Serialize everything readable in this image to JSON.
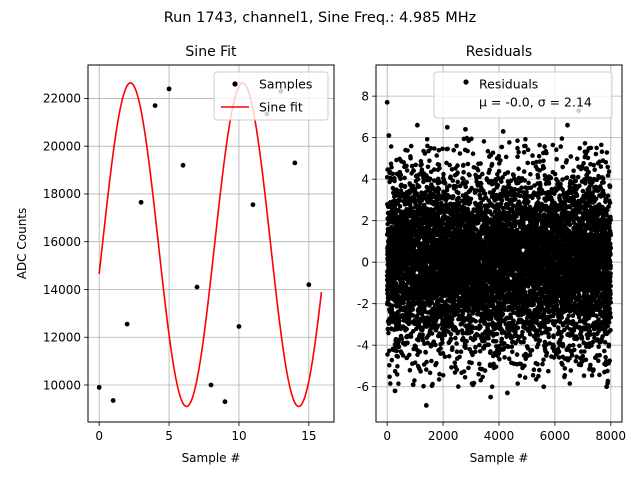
{
  "suptitle": "Run 1743, channel1, Sine Freq.: 4.985 MHz",
  "colors": {
    "samples": "#000000",
    "fit": "#ff0000",
    "grid": "#b0b0b0"
  },
  "chart_data": [
    {
      "type": "line",
      "title": "Sine Fit",
      "xlabel": "Sample #",
      "ylabel": "ADC Counts",
      "xlim": [
        -0.8,
        16.8
      ],
      "ylim": [
        8450,
        23400
      ],
      "xticks": [
        0,
        5,
        10,
        15
      ],
      "yticks": [
        10000,
        12000,
        14000,
        16000,
        18000,
        20000,
        22000
      ],
      "grid": true,
      "legend_placement": "top-right",
      "series": [
        {
          "name": "Samples",
          "style": "points",
          "x": [
            0,
            1,
            2,
            3,
            4,
            5,
            6,
            7,
            8,
            9,
            10,
            11,
            12,
            13,
            14,
            15
          ],
          "y": [
            9900,
            9350,
            12550,
            17650,
            21700,
            22400,
            19200,
            14100,
            10000,
            9300,
            12450,
            17550,
            21350,
            22300,
            19300,
            14200
          ]
        },
        {
          "name": "Sine fit",
          "style": "line",
          "function": {
            "form": "offset + amplitude*sin(2*pi*x/period + phase)",
            "offset": 15875,
            "amplitude": 6775,
            "period": 8.024,
            "phase": -0.1815,
            "x_range": [
              0,
              15.9
            ]
          }
        }
      ]
    },
    {
      "type": "scatter",
      "title": "Residuals",
      "xlabel": "Sample #",
      "ylabel": "",
      "xlim": [
        -400,
        8400
      ],
      "ylim": [
        -7.7,
        9.5
      ],
      "xticks": [
        0,
        2000,
        4000,
        6000,
        8000
      ],
      "yticks": [
        -6,
        -4,
        -2,
        0,
        2,
        4,
        6,
        8
      ],
      "grid": true,
      "legend_placement": "top-right",
      "series": [
        {
          "name": "Residuals",
          "stats_text": "μ = -0.0, σ = 2.14",
          "n_points": 8000,
          "x_range": [
            0,
            7999
          ],
          "mean": 0.0,
          "std": 2.14,
          "marked_outliers": [
            {
              "x": 0,
              "y": 7.7
            },
            {
              "x": 60,
              "y": 6.1
            },
            {
              "x": 280,
              "y": -6.2
            },
            {
              "x": 1400,
              "y": -6.9
            },
            {
              "x": 1080,
              "y": 6.6
            },
            {
              "x": 2150,
              "y": 6.5
            },
            {
              "x": 3700,
              "y": -6.5
            },
            {
              "x": 4300,
              "y": -6.3
            },
            {
              "x": 6450,
              "y": 6.6
            },
            {
              "x": 6850,
              "y": 7.3
            },
            {
              "x": 7850,
              "y": -6.0
            },
            {
              "x": 930,
              "y": -5.9
            },
            {
              "x": 5600,
              "y": -6.0
            },
            {
              "x": 2800,
              "y": 6.4
            },
            {
              "x": 4150,
              "y": 6.3
            }
          ]
        }
      ]
    }
  ]
}
